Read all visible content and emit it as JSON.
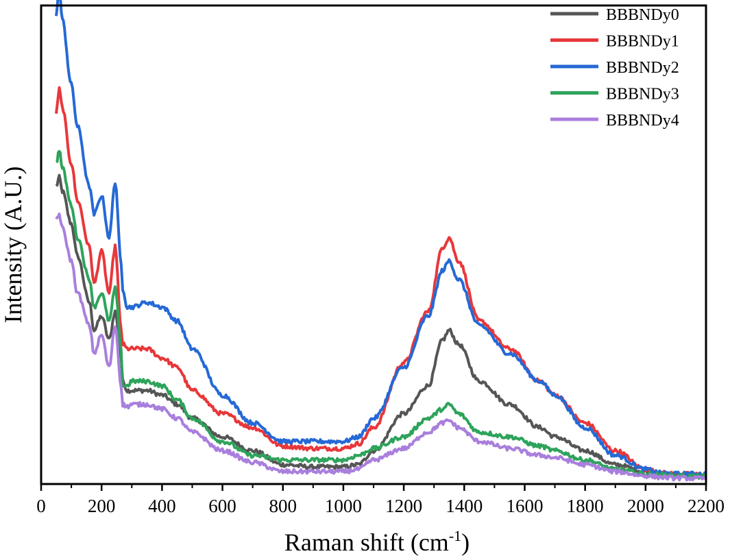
{
  "chart_data": {
    "type": "line",
    "title": "",
    "xlabel": "Raman shift (cm",
    "xlabel_sup": "-1",
    "xlabel_end": ")",
    "ylabel": "Intensity (A.U.)",
    "xlim": [
      0,
      2200
    ],
    "ylim": [
      0,
      100
    ],
    "x_ticks": [
      0,
      200,
      400,
      600,
      800,
      1000,
      1200,
      1400,
      1600,
      1800,
      2000,
      2200
    ],
    "y_ticks_labeled": false,
    "grid": false,
    "legend_position": "top-right",
    "x": [
      50,
      60,
      70,
      100,
      120,
      160,
      175,
      200,
      225,
      245,
      265,
      270,
      285,
      300,
      350,
      400,
      450,
      500,
      600,
      700,
      800,
      900,
      1000,
      1050,
      1100,
      1200,
      1280,
      1330,
      1350,
      1380,
      1450,
      1550,
      1650,
      1700,
      1800,
      1900,
      2000,
      2050,
      2100,
      2200
    ],
    "series": [
      {
        "name": "BBBNDy0",
        "color": "#555555",
        "values": [
          63,
          65,
          62,
          55,
          48,
          38,
          32,
          35,
          30,
          36,
          26,
          21,
          19,
          19,
          19,
          18,
          16,
          13,
          9,
          6,
          3,
          2.5,
          2.5,
          3,
          6,
          14,
          20,
          30,
          32,
          29,
          21,
          16,
          11,
          9,
          6,
          3,
          1.5,
          1,
          0.8,
          0.5
        ]
      },
      {
        "name": "BBBNDy1",
        "color": "#e8373a",
        "values": [
          79,
          84,
          80,
          68,
          60,
          50,
          42,
          49,
          40,
          50,
          32,
          29,
          28,
          28,
          28,
          26,
          24,
          19,
          14,
          11,
          7,
          6.5,
          6.5,
          7.5,
          11,
          25,
          36,
          50,
          52,
          47,
          34,
          28,
          21,
          18,
          12,
          6,
          2,
          1.2,
          1,
          0.8
        ]
      },
      {
        "name": "BBBNDy2",
        "color": "#2569d6",
        "values": [
          100,
          106,
          99,
          85,
          76,
          63,
          57,
          61,
          52,
          64,
          46,
          41,
          37,
          37,
          38,
          37,
          34,
          28,
          18,
          12,
          8,
          8,
          8,
          9,
          13,
          24,
          35,
          45,
          47,
          43,
          33,
          27,
          21,
          18,
          11,
          5,
          2,
          1.2,
          1,
          1
        ]
      },
      {
        "name": "BBBNDy3",
        "color": "#2ea35b",
        "values": [
          68,
          71,
          67,
          59,
          52,
          43,
          37,
          40,
          34,
          41,
          28,
          20,
          20,
          21,
          21,
          20,
          17,
          13,
          8,
          5,
          4,
          4,
          4,
          5,
          6.5,
          9,
          13,
          15,
          16,
          14,
          10,
          9,
          7,
          6,
          4,
          2,
          1,
          0.8,
          0.6,
          0.4
        ]
      },
      {
        "name": "BBBNDy4",
        "color": "#a97fdd",
        "values": [
          56,
          57,
          54,
          47,
          40,
          33,
          27,
          31,
          24,
          33,
          20,
          16,
          15.5,
          16,
          16,
          15,
          13,
          10,
          6,
          3.5,
          1.5,
          1.5,
          1.5,
          2,
          4,
          6.5,
          10,
          12,
          12.5,
          11,
          8,
          6.5,
          5,
          4.5,
          3,
          1.5,
          0.6,
          0.3,
          0.1,
          0
        ]
      }
    ]
  }
}
